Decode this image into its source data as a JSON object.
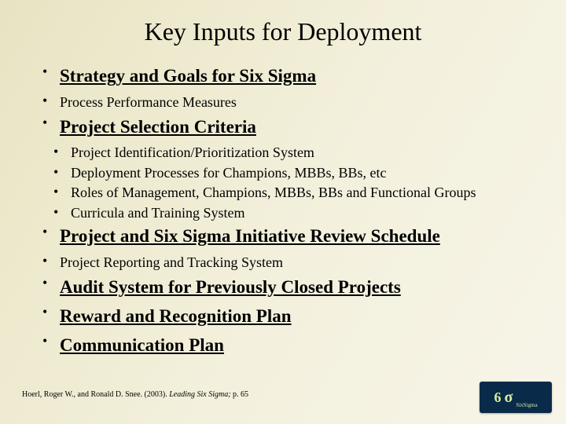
{
  "background_gradient": [
    "#e8e3c2",
    "#eeeacf",
    "#f3f0dd",
    "#f7f5e8"
  ],
  "title": "Key Inputs for Deployment",
  "title_fontsize": 32,
  "bullets": [
    {
      "level": 1,
      "emphasis": true,
      "text": "Strategy and Goals for Six Sigma"
    },
    {
      "level": 1,
      "emphasis": false,
      "text": "Process Performance Measures"
    },
    {
      "level": 1,
      "emphasis": true,
      "text": "Project Selection Criteria"
    },
    {
      "level": 2,
      "emphasis": false,
      "text": "Project Identification/Prioritization System"
    },
    {
      "level": 2,
      "emphasis": false,
      "text": "Deployment Processes for Champions, MBBs, BBs, etc"
    },
    {
      "level": 2,
      "emphasis": false,
      "text": "Roles of Management, Champions, MBBs, BBs and Functional Groups"
    },
    {
      "level": 2,
      "emphasis": false,
      "text": "Curricula and Training System"
    },
    {
      "level": 1,
      "emphasis": true,
      "text": "Project and Six Sigma Initiative Review Schedule"
    },
    {
      "level": 1,
      "emphasis": false,
      "text": "Project Reporting and Tracking System"
    },
    {
      "level": 1,
      "emphasis": true,
      "text": "Audit System for Previously Closed Projects"
    },
    {
      "level": 1,
      "emphasis": true,
      "text": "Reward and Recognition Plan"
    },
    {
      "level": 1,
      "emphasis": true,
      "text": "Communication Plan"
    }
  ],
  "font_level1_em": 23,
  "font_level1_plain": 18,
  "font_level2": 18,
  "citation": {
    "prefix": "Hoerl, Roger W., and Ronald D. Snee. (2003). ",
    "italic": "Leading Six Sigma;",
    "suffix": " p. 65",
    "fontsize": 10
  },
  "logo": {
    "background": "#0a2a4a",
    "text_color": "#d4ef9f",
    "six": "6",
    "sigma": "σ",
    "sub": "SixSigma"
  }
}
